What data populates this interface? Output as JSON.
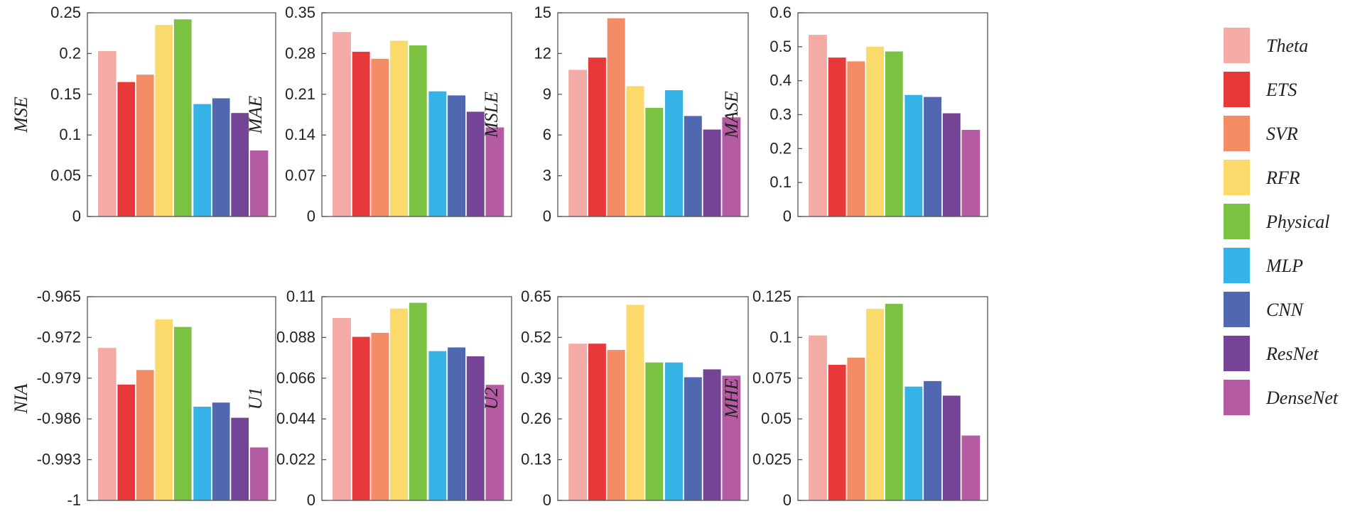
{
  "legend": [
    "Theta",
    "ETS",
    "SVR",
    "RFR",
    "Physical",
    "MLP",
    "CNN",
    "ResNet",
    "DenseNet"
  ],
  "colors": {
    "Theta": "#f4aaa5",
    "ETS": "#e8393a",
    "SVR": "#f48c66",
    "RFR": "#fbd96b",
    "Physical": "#7cc242",
    "MLP": "#35b3e6",
    "CNN": "#4f68b0",
    "ResNet": "#754496",
    "DenseNet": "#b55ba4"
  },
  "chart_data": [
    {
      "type": "bar",
      "ylabel": "MSE",
      "categories": [
        "Theta",
        "ETS",
        "SVR",
        "RFR",
        "Physical",
        "MLP",
        "CNN",
        "ResNet",
        "DenseNet"
      ],
      "values": [
        0.203,
        0.165,
        0.174,
        0.235,
        0.242,
        0.138,
        0.145,
        0.127,
        0.081
      ],
      "ylim": [
        0,
        0.25
      ],
      "ticks": [
        0,
        0.05,
        0.1,
        0.15,
        0.2,
        0.25
      ],
      "tick_labels": [
        "0",
        "0.05",
        "0.1",
        "0.15",
        "0.2",
        "0.25"
      ]
    },
    {
      "type": "bar",
      "ylabel": "MAE",
      "categories": [
        "Theta",
        "ETS",
        "SVR",
        "RFR",
        "Physical",
        "MLP",
        "CNN",
        "ResNet",
        "DenseNet"
      ],
      "values": [
        0.317,
        0.283,
        0.271,
        0.302,
        0.294,
        0.215,
        0.208,
        0.18,
        0.153
      ],
      "ylim": [
        0,
        0.35
      ],
      "ticks": [
        0,
        0.07,
        0.14,
        0.21,
        0.28,
        0.35
      ],
      "tick_labels": [
        "0",
        "0.07",
        "0.14",
        "0.21",
        "0.28",
        "0.35"
      ]
    },
    {
      "type": "bar",
      "ylabel": "MSLE",
      "categories": [
        "Theta",
        "ETS",
        "SVR",
        "RFR",
        "Physical",
        "MLP",
        "CNN",
        "ResNet",
        "DenseNet"
      ],
      "values": [
        10.8,
        11.7,
        14.6,
        9.6,
        8.0,
        9.3,
        7.4,
        6.4,
        7.3
      ],
      "ylim": [
        0,
        15
      ],
      "ticks": [
        0,
        3,
        6,
        9,
        12,
        15
      ],
      "tick_labels": [
        "0",
        "3",
        "6",
        "9",
        "12",
        "15"
      ]
    },
    {
      "type": "bar",
      "ylabel": "MASE",
      "categories": [
        "Theta",
        "ETS",
        "SVR",
        "RFR",
        "Physical",
        "MLP",
        "CNN",
        "ResNet",
        "DenseNet"
      ],
      "values": [
        0.535,
        0.468,
        0.457,
        0.5,
        0.486,
        0.358,
        0.352,
        0.304,
        0.255
      ],
      "ylim": [
        0,
        0.6
      ],
      "ticks": [
        0,
        0.1,
        0.2,
        0.3,
        0.4,
        0.5,
        0.6
      ],
      "tick_labels": [
        "0",
        "0.1",
        "0.2",
        "0.3",
        "0.4",
        "0.5",
        "0.6"
      ]
    },
    {
      "type": "bar",
      "ylabel": "NIA",
      "categories": [
        "Theta",
        "ETS",
        "SVR",
        "RFR",
        "Physical",
        "MLP",
        "CNN",
        "ResNet",
        "DenseNet"
      ],
      "values": [
        -0.9738,
        -0.9801,
        -0.9776,
        -0.9689,
        -0.9702,
        -0.9839,
        -0.9832,
        -0.9858,
        -0.9909
      ],
      "ylim": [
        -1,
        -0.965
      ],
      "ticks": [
        -1,
        -0.993,
        -0.986,
        -0.979,
        -0.972,
        -0.965
      ],
      "tick_labels": [
        "-1",
        "-0.993",
        "-0.986",
        "-0.979",
        "-0.972",
        "-0.965"
      ]
    },
    {
      "type": "bar",
      "ylabel": "U1",
      "categories": [
        "Theta",
        "ETS",
        "SVR",
        "RFR",
        "Physical",
        "MLP",
        "CNN",
        "ResNet",
        "DenseNet"
      ],
      "values": [
        0.0985,
        0.0883,
        0.0905,
        0.1036,
        0.1067,
        0.0806,
        0.0826,
        0.0778,
        0.0624
      ],
      "ylim": [
        0,
        0.11
      ],
      "ticks": [
        0,
        0.022,
        0.044,
        0.066,
        0.088,
        0.11
      ],
      "tick_labels": [
        "0",
        "0.022",
        "0.044",
        "0.066",
        "0.088",
        "0.11"
      ]
    },
    {
      "type": "bar",
      "ylabel": "U2",
      "categories": [
        "Theta",
        "ETS",
        "SVR",
        "RFR",
        "Physical",
        "MLP",
        "CNN",
        "ResNet",
        "DenseNet"
      ],
      "values": [
        0.5,
        0.5,
        0.48,
        0.624,
        0.44,
        0.44,
        0.393,
        0.418,
        0.398
      ],
      "ylim": [
        0,
        0.65
      ],
      "ticks": [
        0,
        0.13,
        0.26,
        0.39,
        0.52,
        0.65
      ],
      "tick_labels": [
        "0",
        "0.13",
        "0.26",
        "0.39",
        "0.52",
        "0.65"
      ]
    },
    {
      "type": "bar",
      "ylabel": "MHE",
      "categories": [
        "Theta",
        "ETS",
        "SVR",
        "RFR",
        "Physical",
        "MLP",
        "CNN",
        "ResNet",
        "DenseNet"
      ],
      "values": [
        0.1012,
        0.0832,
        0.0876,
        0.1175,
        0.1206,
        0.0698,
        0.0732,
        0.0643,
        0.0398
      ],
      "ylim": [
        0,
        0.125
      ],
      "ticks": [
        0,
        0.025,
        0.05,
        0.075,
        0.1,
        0.125
      ],
      "tick_labels": [
        "0",
        "0.025",
        "0.05",
        "0.075",
        "0.1",
        "0.125"
      ]
    }
  ]
}
